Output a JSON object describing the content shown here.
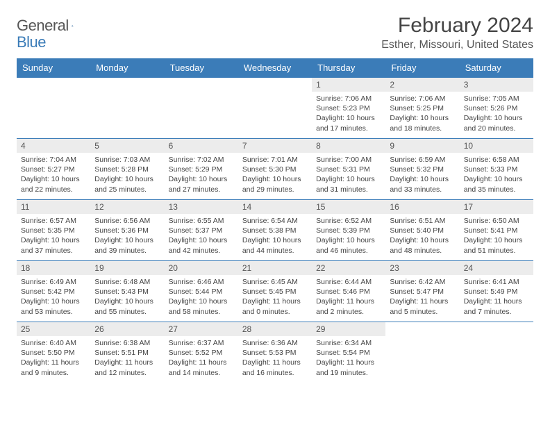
{
  "logo": {
    "word1": "General",
    "word2": "Blue"
  },
  "title": "February 2024",
  "location": "Esther, Missouri, United States",
  "colors": {
    "accent": "#3b7cb8",
    "header_row_bg": "#3b7cb8",
    "header_row_text": "#ffffff",
    "daynum_bg": "#ececec",
    "text": "#444444",
    "background": "#ffffff"
  },
  "day_headers": [
    "Sunday",
    "Monday",
    "Tuesday",
    "Wednesday",
    "Thursday",
    "Friday",
    "Saturday"
  ],
  "weeks": [
    [
      {
        "empty": true
      },
      {
        "empty": true
      },
      {
        "empty": true
      },
      {
        "empty": true
      },
      {
        "num": "1",
        "sunrise": "Sunrise: 7:06 AM",
        "sunset": "Sunset: 5:23 PM",
        "daylight1": "Daylight: 10 hours",
        "daylight2": "and 17 minutes."
      },
      {
        "num": "2",
        "sunrise": "Sunrise: 7:06 AM",
        "sunset": "Sunset: 5:25 PM",
        "daylight1": "Daylight: 10 hours",
        "daylight2": "and 18 minutes."
      },
      {
        "num": "3",
        "sunrise": "Sunrise: 7:05 AM",
        "sunset": "Sunset: 5:26 PM",
        "daylight1": "Daylight: 10 hours",
        "daylight2": "and 20 minutes."
      }
    ],
    [
      {
        "num": "4",
        "sunrise": "Sunrise: 7:04 AM",
        "sunset": "Sunset: 5:27 PM",
        "daylight1": "Daylight: 10 hours",
        "daylight2": "and 22 minutes."
      },
      {
        "num": "5",
        "sunrise": "Sunrise: 7:03 AM",
        "sunset": "Sunset: 5:28 PM",
        "daylight1": "Daylight: 10 hours",
        "daylight2": "and 25 minutes."
      },
      {
        "num": "6",
        "sunrise": "Sunrise: 7:02 AM",
        "sunset": "Sunset: 5:29 PM",
        "daylight1": "Daylight: 10 hours",
        "daylight2": "and 27 minutes."
      },
      {
        "num": "7",
        "sunrise": "Sunrise: 7:01 AM",
        "sunset": "Sunset: 5:30 PM",
        "daylight1": "Daylight: 10 hours",
        "daylight2": "and 29 minutes."
      },
      {
        "num": "8",
        "sunrise": "Sunrise: 7:00 AM",
        "sunset": "Sunset: 5:31 PM",
        "daylight1": "Daylight: 10 hours",
        "daylight2": "and 31 minutes."
      },
      {
        "num": "9",
        "sunrise": "Sunrise: 6:59 AM",
        "sunset": "Sunset: 5:32 PM",
        "daylight1": "Daylight: 10 hours",
        "daylight2": "and 33 minutes."
      },
      {
        "num": "10",
        "sunrise": "Sunrise: 6:58 AM",
        "sunset": "Sunset: 5:33 PM",
        "daylight1": "Daylight: 10 hours",
        "daylight2": "and 35 minutes."
      }
    ],
    [
      {
        "num": "11",
        "sunrise": "Sunrise: 6:57 AM",
        "sunset": "Sunset: 5:35 PM",
        "daylight1": "Daylight: 10 hours",
        "daylight2": "and 37 minutes."
      },
      {
        "num": "12",
        "sunrise": "Sunrise: 6:56 AM",
        "sunset": "Sunset: 5:36 PM",
        "daylight1": "Daylight: 10 hours",
        "daylight2": "and 39 minutes."
      },
      {
        "num": "13",
        "sunrise": "Sunrise: 6:55 AM",
        "sunset": "Sunset: 5:37 PM",
        "daylight1": "Daylight: 10 hours",
        "daylight2": "and 42 minutes."
      },
      {
        "num": "14",
        "sunrise": "Sunrise: 6:54 AM",
        "sunset": "Sunset: 5:38 PM",
        "daylight1": "Daylight: 10 hours",
        "daylight2": "and 44 minutes."
      },
      {
        "num": "15",
        "sunrise": "Sunrise: 6:52 AM",
        "sunset": "Sunset: 5:39 PM",
        "daylight1": "Daylight: 10 hours",
        "daylight2": "and 46 minutes."
      },
      {
        "num": "16",
        "sunrise": "Sunrise: 6:51 AM",
        "sunset": "Sunset: 5:40 PM",
        "daylight1": "Daylight: 10 hours",
        "daylight2": "and 48 minutes."
      },
      {
        "num": "17",
        "sunrise": "Sunrise: 6:50 AM",
        "sunset": "Sunset: 5:41 PM",
        "daylight1": "Daylight: 10 hours",
        "daylight2": "and 51 minutes."
      }
    ],
    [
      {
        "num": "18",
        "sunrise": "Sunrise: 6:49 AM",
        "sunset": "Sunset: 5:42 PM",
        "daylight1": "Daylight: 10 hours",
        "daylight2": "and 53 minutes."
      },
      {
        "num": "19",
        "sunrise": "Sunrise: 6:48 AM",
        "sunset": "Sunset: 5:43 PM",
        "daylight1": "Daylight: 10 hours",
        "daylight2": "and 55 minutes."
      },
      {
        "num": "20",
        "sunrise": "Sunrise: 6:46 AM",
        "sunset": "Sunset: 5:44 PM",
        "daylight1": "Daylight: 10 hours",
        "daylight2": "and 58 minutes."
      },
      {
        "num": "21",
        "sunrise": "Sunrise: 6:45 AM",
        "sunset": "Sunset: 5:45 PM",
        "daylight1": "Daylight: 11 hours",
        "daylight2": "and 0 minutes."
      },
      {
        "num": "22",
        "sunrise": "Sunrise: 6:44 AM",
        "sunset": "Sunset: 5:46 PM",
        "daylight1": "Daylight: 11 hours",
        "daylight2": "and 2 minutes."
      },
      {
        "num": "23",
        "sunrise": "Sunrise: 6:42 AM",
        "sunset": "Sunset: 5:47 PM",
        "daylight1": "Daylight: 11 hours",
        "daylight2": "and 5 minutes."
      },
      {
        "num": "24",
        "sunrise": "Sunrise: 6:41 AM",
        "sunset": "Sunset: 5:49 PM",
        "daylight1": "Daylight: 11 hours",
        "daylight2": "and 7 minutes."
      }
    ],
    [
      {
        "num": "25",
        "sunrise": "Sunrise: 6:40 AM",
        "sunset": "Sunset: 5:50 PM",
        "daylight1": "Daylight: 11 hours",
        "daylight2": "and 9 minutes."
      },
      {
        "num": "26",
        "sunrise": "Sunrise: 6:38 AM",
        "sunset": "Sunset: 5:51 PM",
        "daylight1": "Daylight: 11 hours",
        "daylight2": "and 12 minutes."
      },
      {
        "num": "27",
        "sunrise": "Sunrise: 6:37 AM",
        "sunset": "Sunset: 5:52 PM",
        "daylight1": "Daylight: 11 hours",
        "daylight2": "and 14 minutes."
      },
      {
        "num": "28",
        "sunrise": "Sunrise: 6:36 AM",
        "sunset": "Sunset: 5:53 PM",
        "daylight1": "Daylight: 11 hours",
        "daylight2": "and 16 minutes."
      },
      {
        "num": "29",
        "sunrise": "Sunrise: 6:34 AM",
        "sunset": "Sunset: 5:54 PM",
        "daylight1": "Daylight: 11 hours",
        "daylight2": "and 19 minutes."
      },
      {
        "empty": true
      },
      {
        "empty": true
      }
    ]
  ]
}
